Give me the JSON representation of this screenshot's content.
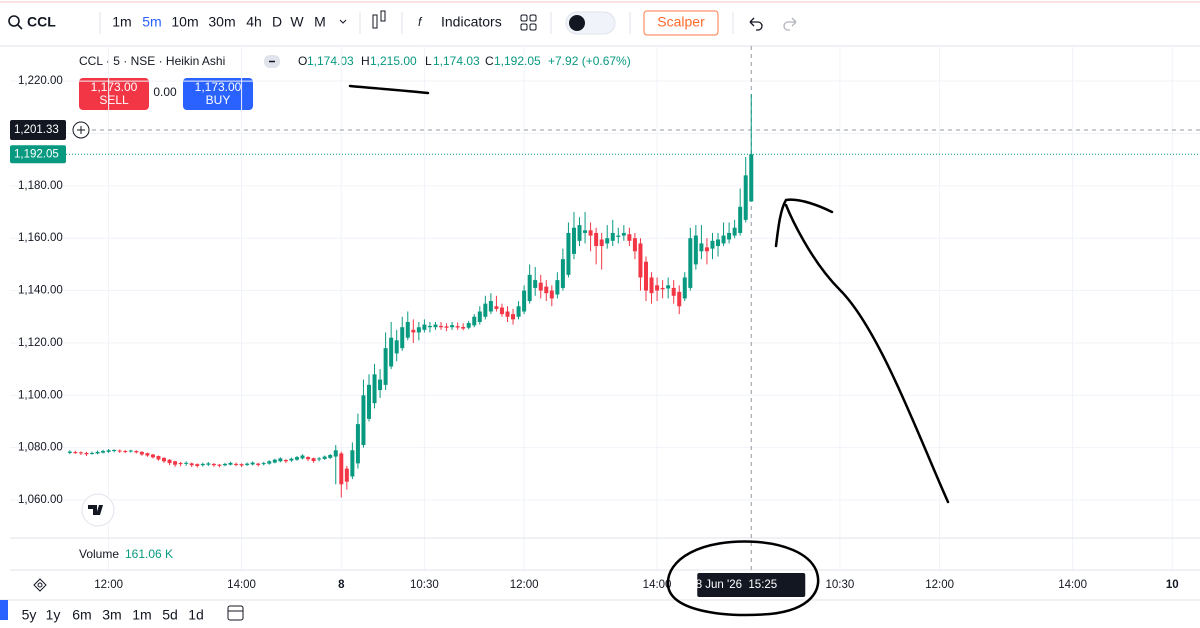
{
  "chart_data": {
    "type": "candlestick",
    "title": "CCL · 5 · NSE · Heikin Ashi",
    "up_color": "#089981",
    "down_color": "#f23645",
    "open": [
      1078.0,
      1078.3,
      1078.2,
      1078.0,
      1077.7,
      1077.8,
      1078.1,
      1078.4,
      1078.7,
      1078.9,
      1078.7,
      1078.6,
      1078.7,
      1078.4,
      1077.9,
      1077.4,
      1076.8,
      1076.1,
      1075.4,
      1074.8,
      1074.1,
      1073.9,
      1074.0,
      1073.7,
      1073.3,
      1073.5,
      1073.8,
      1073.5,
      1073.3,
      1073.5,
      1073.8,
      1073.7,
      1073.4,
      1073.6,
      1073.9,
      1073.7,
      1073.9,
      1074.3,
      1074.8,
      1075.3,
      1075.1,
      1075.4,
      1075.9,
      1076.4,
      1076.0,
      1075.5,
      1075.7,
      1076.1,
      1076.6,
      1077.8,
      1072,
      1069,
      1074,
      1081,
      1091,
      1097,
      1102,
      1104,
      1111,
      1116,
      1118,
      1122,
      1125,
      1124,
      1125,
      1126,
      1126,
      1126.5,
      1126.3,
      1126,
      1126.4,
      1126.1,
      1125.8,
      1126.7,
      1128,
      1130,
      1132,
      1134,
      1133.5,
      1132,
      1131,
      1130,
      1132,
      1136,
      1141,
      1143,
      1141.5,
      1140,
      1138.5,
      1141,
      1146,
      1154,
      1159,
      1162,
      1163,
      1162,
      1159.5,
      1158,
      1159,
      1160.5,
      1161,
      1161.5,
      1160,
      1158,
      1151,
      1145,
      1142,
      1141,
      1140.8,
      1141,
      1139.5,
      1137,
      1141,
      1150,
      1155,
      1156.5,
      1156,
      1157,
      1158,
      1159.5,
      1161,
      1162,
      1167,
      1174.03
    ],
    "high": [
      1079.0,
      1078.8,
      1078.6,
      1078.4,
      1078.5,
      1078.9,
      1079.2,
      1079.5,
      1079.4,
      1079.3,
      1079.1,
      1079.2,
      1079.0,
      1078.6,
      1078.1,
      1077.6,
      1077.0,
      1076.3,
      1075.6,
      1075.0,
      1074.6,
      1074.8,
      1074.3,
      1074.0,
      1074.3,
      1074.5,
      1074.1,
      1073.8,
      1074.2,
      1074.6,
      1074.3,
      1074.0,
      1074.3,
      1074.7,
      1074.2,
      1074.6,
      1075.2,
      1075.8,
      1076.3,
      1075.6,
      1076.2,
      1076.8,
      1077.5,
      1076.7,
      1076.2,
      1076.4,
      1077.0,
      1077.6,
      1081,
      1078.5,
      1073,
      1082,
      1093,
      1106,
      1108,
      1112,
      1110,
      1124,
      1128,
      1125,
      1130,
      1132,
      1129,
      1128,
      1129,
      1128,
      1128,
      1128,
      1127.5,
      1128,
      1127.8,
      1127.5,
      1128.4,
      1131,
      1134,
      1138,
      1139,
      1138,
      1135,
      1134,
      1133,
      1136,
      1142,
      1150,
      1149,
      1146,
      1144,
      1142,
      1147,
      1156,
      1166,
      1170,
      1168,
      1170,
      1166,
      1164,
      1162,
      1165,
      1167,
      1164,
      1165,
      1164,
      1162,
      1160,
      1153,
      1147,
      1145,
      1144,
      1145,
      1144,
      1142,
      1147,
      1164,
      1165,
      1165,
      1160,
      1162,
      1162,
      1166,
      1166,
      1167,
      1179,
      1191,
      1215
    ],
    "low": [
      1077.5,
      1077.6,
      1077.2,
      1076.8,
      1077.3,
      1077.5,
      1077.8,
      1078.0,
      1078.2,
      1078.0,
      1077.9,
      1078.1,
      1077.8,
      1076.9,
      1076.5,
      1075.9,
      1075.0,
      1074.2,
      1073.3,
      1072.7,
      1072.9,
      1073.1,
      1072.6,
      1072.4,
      1072.8,
      1073.0,
      1072.7,
      1072.5,
      1072.9,
      1073.2,
      1072.9,
      1072.6,
      1073.0,
      1073.2,
      1072.8,
      1073.2,
      1073.5,
      1074.0,
      1074.4,
      1074.1,
      1074.6,
      1075.0,
      1075.5,
      1074.9,
      1074.2,
      1074.8,
      1075.3,
      1075.7,
      1066,
      1061,
      1064,
      1068,
      1072,
      1080,
      1090,
      1095,
      1099,
      1102,
      1110,
      1113,
      1117,
      1121,
      1120,
      1121,
      1124,
      1124,
      1125,
      1125,
      1124.5,
      1125,
      1125,
      1124.8,
      1125.2,
      1126,
      1127,
      1129,
      1131,
      1132,
      1130,
      1128,
      1127,
      1129,
      1131,
      1135,
      1138,
      1137,
      1136,
      1134,
      1137,
      1140,
      1145,
      1152,
      1157,
      1158,
      1155,
      1150,
      1148,
      1156,
      1157,
      1158,
      1159,
      1157,
      1152,
      1140,
      1136,
      1135,
      1136,
      1137,
      1137,
      1135,
      1131,
      1136,
      1140,
      1148,
      1152,
      1150,
      1152,
      1153,
      1157,
      1158,
      1160,
      1161,
      1166,
      1174.03
    ],
    "close": [
      1078.5,
      1078.2,
      1077.9,
      1077.5,
      1078.0,
      1078.4,
      1078.7,
      1079.0,
      1079.1,
      1078.6,
      1078.4,
      1078.9,
      1078.2,
      1077.4,
      1077.0,
      1076.3,
      1075.5,
      1074.8,
      1074.1,
      1073.5,
      1073.8,
      1074.2,
      1073.3,
      1073.0,
      1073.8,
      1074.0,
      1073.3,
      1073.1,
      1073.8,
      1074.2,
      1073.5,
      1073.2,
      1073.9,
      1074.3,
      1073.4,
      1074.1,
      1074.8,
      1075.4,
      1075.9,
      1074.8,
      1075.8,
      1076.4,
      1077.0,
      1075.6,
      1074.9,
      1075.9,
      1076.6,
      1077.2,
      1079,
      1066,
      1067,
      1079,
      1089,
      1100,
      1104,
      1108,
      1106,
      1118,
      1122,
      1121,
      1126,
      1128,
      1124,
      1126,
      1127,
      1126.5,
      1127,
      1126,
      1125.8,
      1126.8,
      1125.9,
      1125.5,
      1127.6,
      1130,
      1132,
      1135,
      1136,
      1133,
      1131,
      1130,
      1129,
      1134,
      1140,
      1146,
      1144,
      1140,
      1139,
      1137,
      1144,
      1152,
      1162,
      1164,
      1165,
      1163,
      1161,
      1157,
      1157,
      1160,
      1162,
      1161,
      1162,
      1159,
      1155,
      1145,
      1140,
      1139,
      1140,
      1140.5,
      1142,
      1138,
      1134,
      1145,
      1160,
      1161,
      1158,
      1155,
      1159,
      1159.5,
      1161,
      1162,
      1164,
      1172,
      1184,
      1192.05
    ],
    "xlim": [
      -10.8,
      204
    ],
    "ylim": [
      1045.5,
      1233.4
    ],
    "xticks": [
      {
        "value": 7,
        "label": "12:00"
      },
      {
        "value": 31,
        "label": "14:00"
      },
      {
        "value": 49,
        "label": "8"
      },
      {
        "value": 64,
        "label": "10:30"
      },
      {
        "value": 82,
        "label": "12:00"
      },
      {
        "value": 106,
        "label": "14:00"
      },
      {
        "value": 139,
        "label": "10:30"
      },
      {
        "value": 157,
        "label": "12:00"
      },
      {
        "value": 181,
        "label": "14:00"
      },
      {
        "value": 199,
        "label": "10"
      }
    ],
    "yticks": [
      {
        "value": 1060,
        "label": "1,060.00"
      },
      {
        "value": 1080,
        "label": "1,080.00"
      },
      {
        "value": 1100,
        "label": "1,100.00"
      },
      {
        "value": 1120,
        "label": "1,120.00"
      },
      {
        "value": 1140,
        "label": "1,140.00"
      },
      {
        "value": 1160,
        "label": "1,160.00"
      },
      {
        "value": 1180,
        "label": "1,180.00"
      },
      {
        "value": 1200,
        "label": "1,200.00"
      },
      {
        "value": 1220,
        "label": "1,220.00"
      }
    ],
    "grid": true,
    "last_price": {
      "value": 1192.05,
      "label": "1,192.05"
    },
    "crosshair": {
      "price": {
        "value": 1201.33,
        "label": "1,201.33"
      },
      "x": 123,
      "time_label": "08 Jun '26  15:25"
    }
  },
  "toolbar": {
    "symbol": "CCL",
    "intervals": [
      "1m",
      "5m",
      "10m",
      "30m",
      "4h",
      "D",
      "W",
      "M"
    ],
    "indicators": "Indicators",
    "template": "Scalper"
  },
  "legend": {
    "open_label": "O",
    "open": "1,174.03",
    "high_label": "H",
    "high": "1,215.00",
    "low_label": "L",
    "low": "1,174.03",
    "close_label": "C",
    "close": "1,192.05",
    "change": "+7.92 (+0.67%)"
  },
  "trade": {
    "sell_price": "1,173.00",
    "sell": "SELL",
    "spread": "0.00",
    "buy_price": "1,173.00",
    "buy": "BUY"
  },
  "volume": {
    "label": "Volume",
    "value": "161.06 K"
  },
  "ranges": [
    "5y",
    "1y",
    "6m",
    "3m",
    "1m",
    "5d",
    "1d"
  ]
}
